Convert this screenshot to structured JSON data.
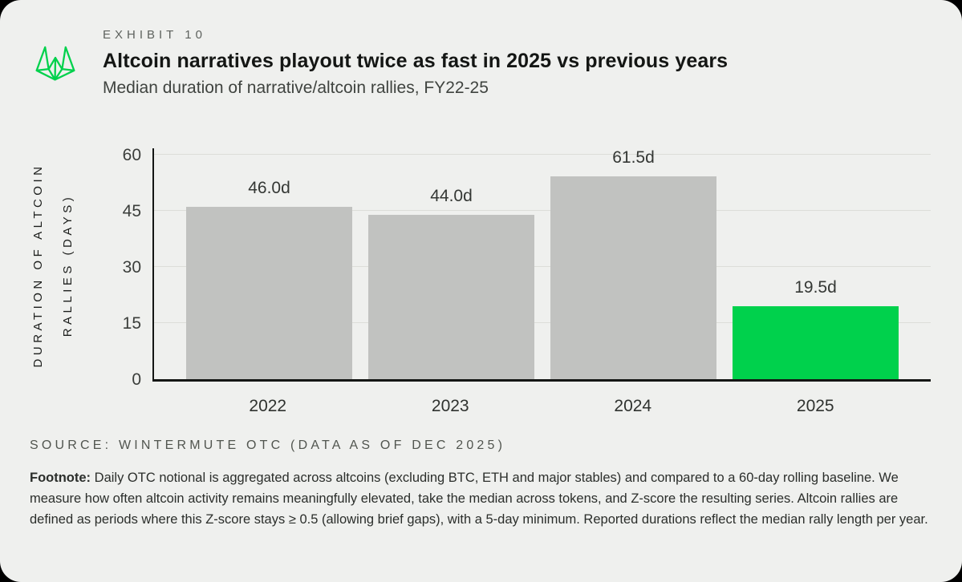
{
  "page": {
    "exhibit_label": "EXHIBIT 10",
    "title": "Altcoin narratives playout twice as fast in 2025 vs previous years",
    "subtitle": "Median duration of narrative/altcoin rallies, FY22-25",
    "source": "SOURCE: WINTERMUTE OTC (DATA AS OF DEC 2025)",
    "footnote_label": "Footnote:",
    "footnote_text": " Daily OTC notional is aggregated across altcoins (excluding BTC, ETH and major stables) and compared to a 60-day rolling baseline. We measure how often altcoin activity remains meaningfully elevated, take the median across tokens, and Z-score the resulting series. Altcoin rallies are defined as periods where this Z-score stays ≥ 0.5 (allowing brief gaps), with a 5-day minimum. Reported durations reflect the median rally length per year."
  },
  "chart_data": {
    "type": "bar",
    "title": "Altcoin narratives playout twice as fast in 2025 vs previous years",
    "subtitle": "Median duration of narrative/altcoin rallies, FY22-25",
    "categories": [
      "2022",
      "2023",
      "2024",
      "2025"
    ],
    "values": [
      46.0,
      44.0,
      61.5,
      19.5
    ],
    "value_labels": [
      "46.0d",
      "44.0d",
      "61.5d",
      "19.5d"
    ],
    "ylabel": "DURATION OF ALTCOIN RALLIES (DAYS)",
    "ylabel_lines": [
      "DURATION OF ALTCOIN",
      "RALLIES (DAYS)"
    ],
    "xlabel": "",
    "ylim": [
      0,
      62.4
    ],
    "yticks": [
      0,
      15,
      30,
      45,
      60
    ],
    "grid": true,
    "legend": "none",
    "bar_colors": [
      "#c1c2c0",
      "#c1c2c0",
      "#c1c2c0",
      "#00d14c"
    ],
    "default_color": "#c1c2c0",
    "highlight_color": "#00d14c"
  },
  "colors": {
    "card_background": "#eff0ee",
    "outer_background": "#000000",
    "accent_green": "#00d14c",
    "bar_gray": "#c1c2c0",
    "gridline": "#dcddd9",
    "axis_line": "#141614"
  }
}
